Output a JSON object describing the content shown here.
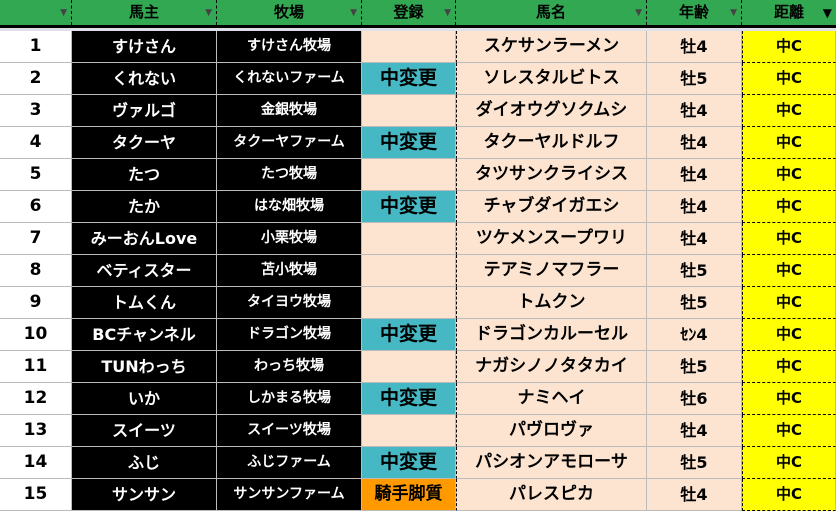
{
  "headers": [
    "",
    "馬主",
    "牧場",
    "登録",
    "馬名",
    "年齢",
    "距離"
  ],
  "filter_active_column": "距離",
  "colors": {
    "header": "#33a852",
    "owner_bg": "#000000",
    "row_bg": "#fce4d0",
    "change": "#45b8c4",
    "jockey": "#ff9900",
    "distance": "#ffff00"
  },
  "rows": [
    {
      "no": "1",
      "owner": "すけさん",
      "farm": "すけさん牧場",
      "reg": "",
      "horse": "スケサンラーメン",
      "age": "牡4",
      "dist": "中C"
    },
    {
      "no": "2",
      "owner": "くれない",
      "farm": "くれないファーム",
      "reg": "中変更",
      "horse": "ソレスタルビトス",
      "age": "牡5",
      "dist": "中C"
    },
    {
      "no": "3",
      "owner": "ヴァルゴ",
      "farm": "金銀牧場",
      "reg": "",
      "horse": "ダイオウグソクムシ",
      "age": "牡4",
      "dist": "中C"
    },
    {
      "no": "4",
      "owner": "タクーヤ",
      "farm": "タクーヤファーム",
      "reg": "中変更",
      "horse": "タクーヤルドルフ",
      "age": "牡4",
      "dist": "中C"
    },
    {
      "no": "5",
      "owner": "たつ",
      "farm": "たつ牧場",
      "reg": "",
      "horse": "タツサンクライシス",
      "age": "牡4",
      "dist": "中C"
    },
    {
      "no": "6",
      "owner": "たか",
      "farm": "はな畑牧場",
      "reg": "中変更",
      "horse": "チャブダイガエシ",
      "age": "牡4",
      "dist": "中C"
    },
    {
      "no": "7",
      "owner": "みーおんLove",
      "farm": "小栗牧場",
      "reg": "",
      "horse": "ツケメンスープワリ",
      "age": "牡4",
      "dist": "中C"
    },
    {
      "no": "8",
      "owner": "ベティスター",
      "farm": "苫小牧場",
      "reg": "",
      "horse": "テアミノマフラー",
      "age": "牡5",
      "dist": "中C"
    },
    {
      "no": "9",
      "owner": "トムくん",
      "farm": "タイヨウ牧場",
      "reg": "",
      "horse": "トムクン",
      "age": "牡5",
      "dist": "中C"
    },
    {
      "no": "10",
      "owner": "BCチャンネル",
      "farm": "ドラゴン牧場",
      "reg": "中変更",
      "horse": "ドラゴンカルーセル",
      "age": "ｾﾝ4",
      "dist": "中C"
    },
    {
      "no": "11",
      "owner": "TUNわっち",
      "farm": "わっち牧場",
      "reg": "",
      "horse": "ナガシノノタタカイ",
      "age": "牡5",
      "dist": "中C"
    },
    {
      "no": "12",
      "owner": "いか",
      "farm": "しかまる牧場",
      "reg": "中変更",
      "horse": "ナミヘイ",
      "age": "牡6",
      "dist": "中C"
    },
    {
      "no": "13",
      "owner": "スイーツ",
      "farm": "スイーツ牧場",
      "reg": "",
      "horse": "パヴロヴァ",
      "age": "牡4",
      "dist": "中C"
    },
    {
      "no": "14",
      "owner": "ふじ",
      "farm": "ふじファーム",
      "reg": "中変更",
      "horse": "パシオンアモローサ",
      "age": "牡5",
      "dist": "中C"
    },
    {
      "no": "15",
      "owner": "サンサン",
      "farm": "サンサンファーム",
      "reg": "騎手脚質",
      "horse": "パレスピカ",
      "age": "牡4",
      "dist": "中C"
    }
  ]
}
